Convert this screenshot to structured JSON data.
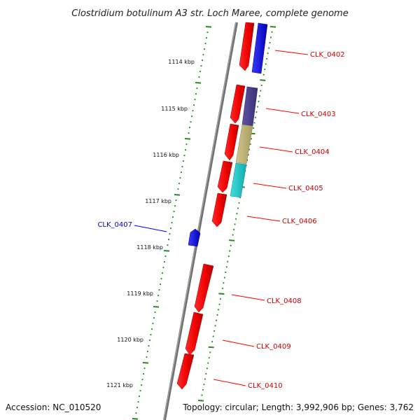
{
  "title": "Clostridium botulinum A3 str. Loch Maree, complete genome",
  "footer": {
    "accession": "Accession: NC_010520",
    "topology": "Topology: circular; Length: 3,992,906 bp; Genes: 3,762"
  },
  "colors": {
    "backbone": "#808080",
    "tick": "#228b22",
    "forward_gene": "#ff0000",
    "gene_label_red": "#cc0000",
    "gene_label_blue": "#0000cc",
    "ortholog_blue": "#0000ff",
    "ortholog_purple": "#4b3f8f",
    "ortholog_khaki": "#bdb27a",
    "ortholog_cyan": "#1fc8c8"
  },
  "scale_labels": [
    "1114 kbp",
    "1115 kbp",
    "1116 kbp",
    "1117 kbp",
    "1118 kbp",
    "1119 kbp",
    "1120 kbp",
    "1121 kbp"
  ],
  "genes": [
    {
      "id": "CLK_0402",
      "label": "CLK_0402"
    },
    {
      "id": "CLK_0403",
      "label": "CLK_0403"
    },
    {
      "id": "CLK_0404",
      "label": "CLK_0404"
    },
    {
      "id": "CLK_0405",
      "label": "CLK_0405"
    },
    {
      "id": "CLK_0406",
      "label": "CLK_0406"
    },
    {
      "id": "CLK_0407",
      "label": "CLK_0407"
    },
    {
      "id": "CLK_0408",
      "label": "CLK_0408"
    },
    {
      "id": "CLK_0409",
      "label": "CLK_0409"
    },
    {
      "id": "CLK_0410",
      "label": "CLK_0410"
    }
  ]
}
